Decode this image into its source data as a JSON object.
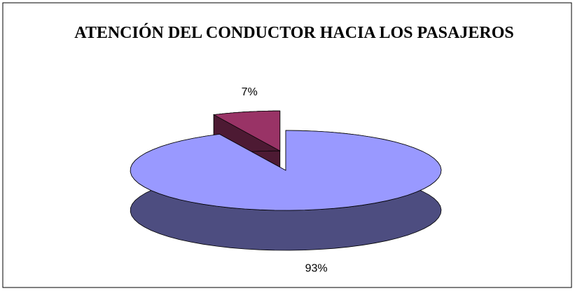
{
  "chart_data": {
    "type": "pie3d",
    "title": "ATENCIÓN DEL CONDUCTOR HACIA LOS PASAJEROS",
    "values": [
      93,
      7
    ],
    "value_labels": [
      "93%",
      "7%"
    ],
    "colors": [
      "#9999ff",
      "#993366"
    ]
  }
}
